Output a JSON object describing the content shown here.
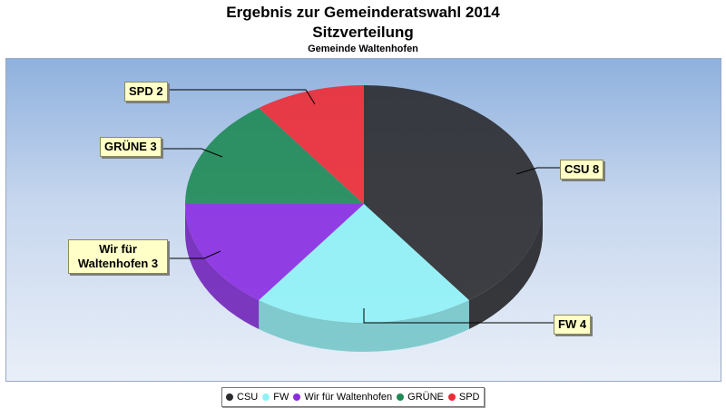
{
  "chart_data": {
    "type": "pie",
    "title": "Ergebnis zur Gemeinderatswahl 2014",
    "subtitle": "Sitzverteilung",
    "subsubtitle": "Gemeinde Waltenhofen",
    "slices": [
      {
        "name": "CSU",
        "value": 8,
        "color": "#2b2b2f",
        "label": "CSU 8"
      },
      {
        "name": "FW",
        "value": 4,
        "color": "#8ff2f6",
        "label": "FW 4"
      },
      {
        "name": "Wir für Waltenhofen",
        "value": 3,
        "color": "#8a2be2",
        "label": "Wir für Waltenhofen 3"
      },
      {
        "name": "GRÜNE",
        "value": 3,
        "color": "#1e8a55",
        "label": "GRÜNE 3"
      },
      {
        "name": "SPD",
        "value": 2,
        "color": "#ee2b35",
        "label": "SPD 2"
      }
    ],
    "legend_position": "bottom"
  }
}
